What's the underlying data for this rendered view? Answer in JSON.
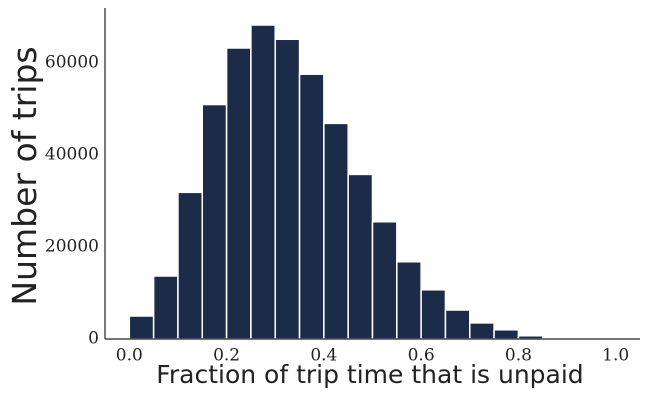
{
  "chart_data": {
    "type": "histogram",
    "xlabel": "Fraction of trip time that is unpaid",
    "ylabel": "Number of trips",
    "bins": [
      0,
      0.05,
      0.1,
      0.15,
      0.2,
      0.25,
      0.3,
      0.35,
      0.4,
      0.45,
      0.5,
      0.55,
      0.6,
      0.65,
      0.7,
      0.75,
      0.8,
      0.85,
      0.9,
      0.95,
      1
    ],
    "values": [
      5000,
      13700,
      31900,
      51000,
      63300,
      68300,
      65200,
      57600,
      46900,
      35800,
      25500,
      16800,
      10700,
      6300,
      3500,
      2000,
      700,
      200,
      50,
      10
    ],
    "color": "#1b2b48",
    "xlim": [
      -0.05,
      1.05
    ],
    "ylim": [
      0,
      72000
    ],
    "xticks": [
      {
        "value": 0,
        "label": "0.0"
      },
      0.2,
      0.4,
      0.6,
      0.8,
      {
        "value": 1,
        "label": "1.0"
      }
    ],
    "yticks": [
      0,
      20000,
      40000,
      60000
    ],
    "grid": false
  }
}
